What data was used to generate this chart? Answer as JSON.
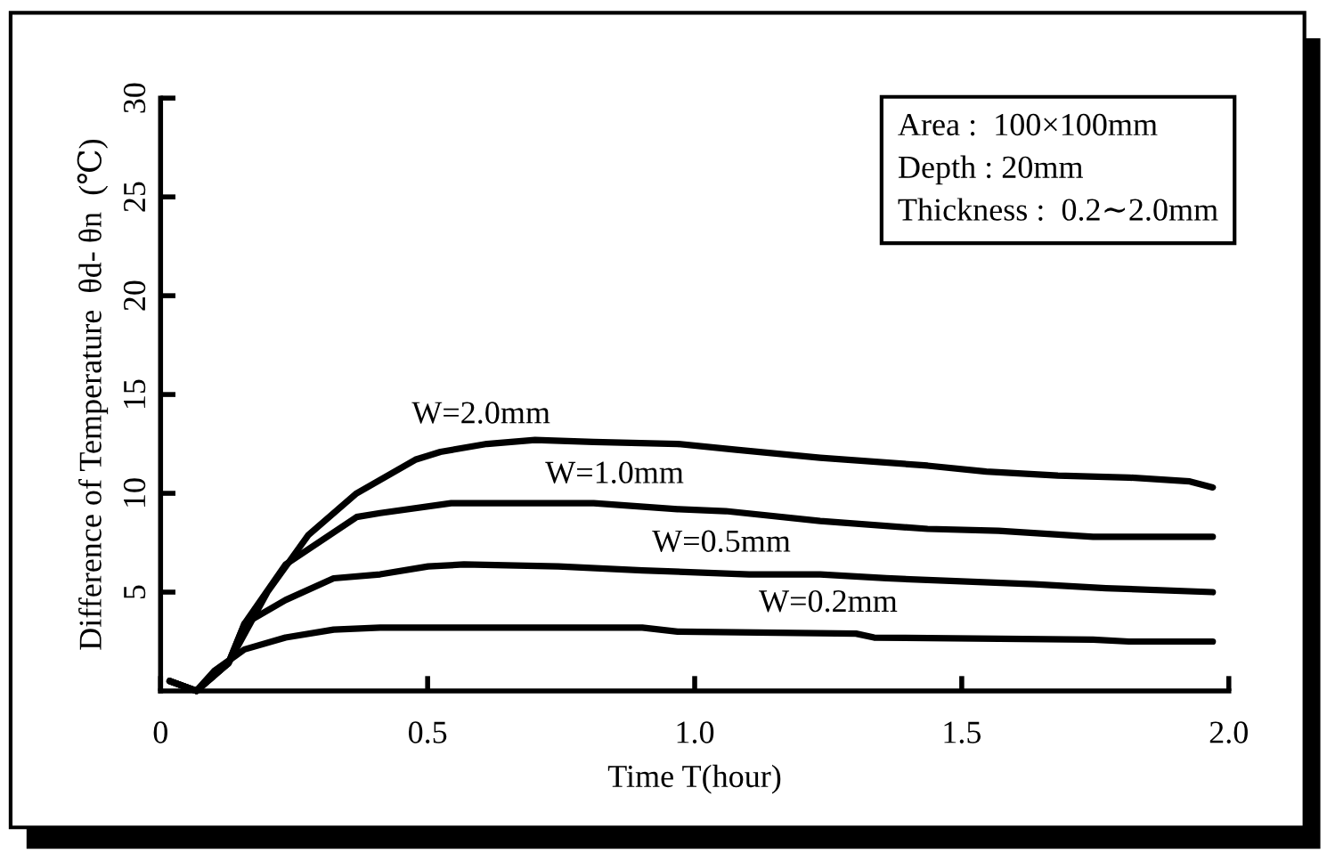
{
  "chart_data": {
    "type": "line",
    "xlabel": "Time T(hour)",
    "ylabel": "Difference of Temperature  θd- θn  (℃)",
    "xlim": [
      0,
      2.0
    ],
    "ylim": [
      0,
      30
    ],
    "xticks": [
      0,
      0.5,
      {
        "value": 1,
        "label": "1.0"
      },
      1.5,
      {
        "value": 2,
        "label": "2.0"
      }
    ],
    "yticks": [
      5,
      10,
      15,
      20,
      25,
      30
    ],
    "grid": false,
    "legend": false,
    "marker": "none",
    "line_style": "solid",
    "annotations": [
      "Area :  100×100mm\nDepth : 20mm\nThickness :  0.2∼2.0mm"
    ],
    "series": [
      {
        "name": "W=2.0mm",
        "color": "#000000",
        "x": [
          0.017,
          0.067,
          0.127,
          0.2,
          0.277,
          0.367,
          0.477,
          0.524,
          0.611,
          0.701,
          0.811,
          0.968,
          1.078,
          1.235,
          1.436,
          1.546,
          1.68,
          1.813,
          1.927,
          1.97
        ],
        "values": [
          0.5,
          0,
          1.4,
          5.0,
          7.9,
          10.0,
          11.7,
          12.1,
          12.5,
          12.7,
          12.6,
          12.5,
          12.2,
          11.8,
          11.4,
          11.1,
          10.9,
          10.8,
          10.6,
          10.3
        ]
      },
      {
        "name": "W=1.0mm",
        "color": "#000000",
        "x": [
          0.017,
          0.067,
          0.127,
          0.157,
          0.234,
          0.367,
          0.411,
          0.544,
          0.811,
          0.968,
          1.058,
          1.235,
          1.436,
          1.569,
          1.746,
          1.97
        ],
        "values": [
          0.5,
          0,
          1.4,
          3.4,
          6.4,
          8.8,
          9.0,
          9.5,
          9.5,
          9.2,
          9.1,
          8.6,
          8.2,
          8.1,
          7.8,
          7.8
        ]
      },
      {
        "name": "W=0.5mm",
        "color": "#000000",
        "x": [
          0.017,
          0.067,
          0.127,
          0.157,
          0.234,
          0.324,
          0.411,
          0.501,
          0.568,
          0.745,
          0.902,
          1.102,
          1.235,
          1.359,
          1.636,
          1.77,
          1.97
        ],
        "values": [
          0.5,
          0,
          1.4,
          3.4,
          4.6,
          5.7,
          5.9,
          6.3,
          6.4,
          6.3,
          6.1,
          5.9,
          5.9,
          5.7,
          5.4,
          5.2,
          5.0
        ]
      },
      {
        "name": "W=0.2mm",
        "color": "#000000",
        "x": [
          0.017,
          0.067,
          0.1,
          0.157,
          0.234,
          0.324,
          0.411,
          0.902,
          0.968,
          1.302,
          1.336,
          1.746,
          1.813,
          1.97
        ],
        "values": [
          0.5,
          0,
          1.0,
          2.1,
          2.7,
          3.1,
          3.2,
          3.2,
          3.0,
          2.9,
          2.7,
          2.6,
          2.5,
          2.5
        ]
      }
    ]
  }
}
